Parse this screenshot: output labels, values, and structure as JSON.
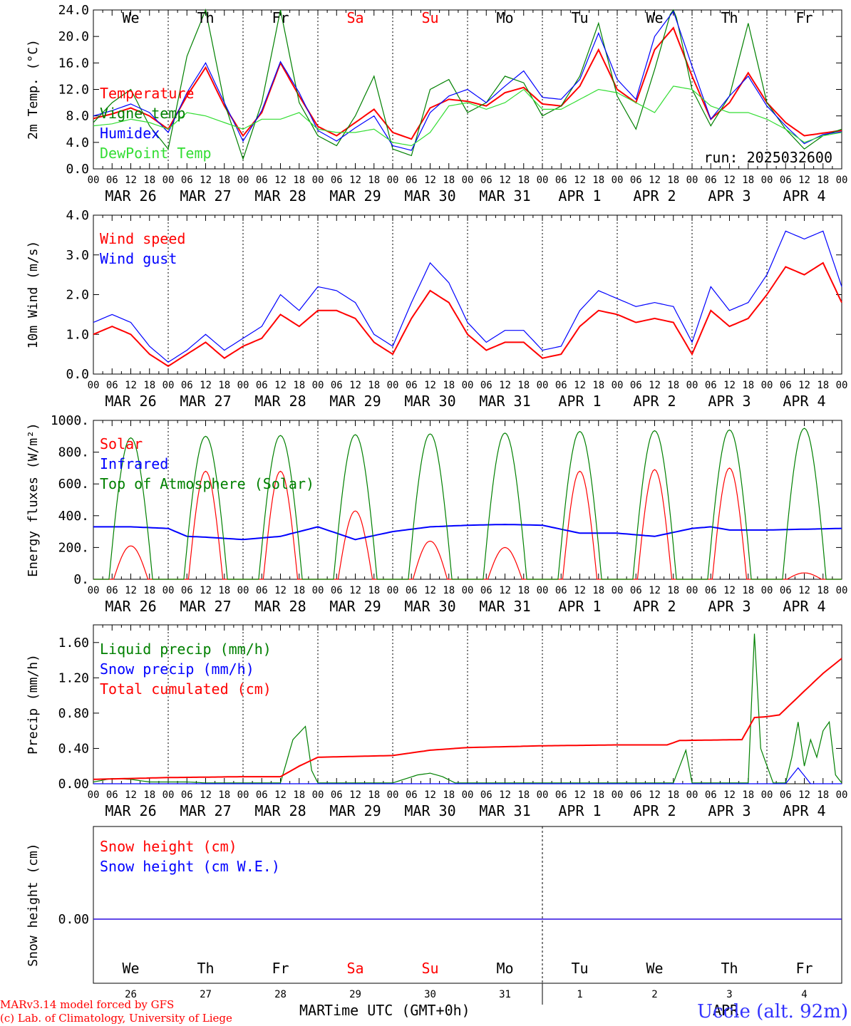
{
  "footer": {
    "model_line": "MARv3.14 model forced by GFS",
    "credit_line": "(c) Lab. of Climatology, University of Liege",
    "xlabel": "Time UTC (GMT+0h)",
    "month_left": "MAR",
    "month_right": "APR",
    "station": "Uccle (alt. 92m)"
  },
  "run_label": "run: 2025032600",
  "hour_ticks": [
    "00",
    "06",
    "12",
    "18"
  ],
  "day_letters": [
    "We",
    "Th",
    "Fr",
    "Sa",
    "Su",
    "Mo",
    "Tu",
    "We",
    "Th",
    "Fr"
  ],
  "weekend_days": [
    3,
    4
  ],
  "date_labels": [
    "MAR 26",
    "MAR 27",
    "MAR 28",
    "MAR 29",
    "MAR 30",
    "MAR 31",
    "APR  1",
    "APR  2",
    "APR  3",
    "APR  4"
  ],
  "day_numbers": [
    "26",
    "27",
    "28",
    "29",
    "30",
    "31",
    "1",
    "2",
    "3",
    "4"
  ],
  "colors": {
    "red": "#ff0000",
    "blue": "#0000ff",
    "green": "#008000",
    "light_green": "#33dd33",
    "frame": "#000000",
    "station": "#3333ff"
  },
  "chart_data": [
    {
      "type": "line",
      "ylabel": "2m Temp. (°C)",
      "ylim": [
        0,
        24
      ],
      "yticks": [
        "0.0",
        "4.0",
        "8.0",
        "12.0",
        "16.0",
        "20.0",
        "24.0"
      ],
      "x_unit": "hours since MAR 26 00 UTC",
      "series": [
        {
          "name": "Temperature",
          "color": "#ff0000",
          "x": [
            0,
            6,
            12,
            18,
            24,
            30,
            36,
            42,
            48,
            54,
            60,
            66,
            72,
            78,
            84,
            90,
            96,
            102,
            108,
            114,
            120,
            126,
            132,
            138,
            144,
            150,
            156,
            162,
            168,
            174,
            180,
            186,
            192,
            198,
            204,
            210,
            216,
            222,
            228,
            234,
            240
          ],
          "y": [
            7.6,
            8.3,
            9.2,
            8.0,
            6.0,
            11.0,
            15.3,
            9.5,
            5.0,
            8.5,
            16.0,
            11.0,
            6.4,
            5.0,
            7.0,
            9.0,
            5.5,
            4.5,
            9.2,
            10.5,
            10.2,
            9.5,
            11.5,
            12.3,
            9.8,
            9.5,
            12.5,
            18.0,
            12.0,
            10.0,
            18.0,
            21.3,
            14.0,
            7.5,
            10.0,
            14.5,
            10.0,
            7.0,
            5.0,
            5.4,
            5.8
          ]
        },
        {
          "name": "Vigne temp",
          "color": "#008000",
          "x": [
            0,
            6,
            12,
            18,
            24,
            30,
            36,
            42,
            48,
            54,
            60,
            66,
            72,
            78,
            84,
            90,
            96,
            102,
            108,
            114,
            120,
            126,
            132,
            138,
            144,
            150,
            156,
            162,
            168,
            174,
            180,
            186,
            192,
            198,
            204,
            210,
            216,
            222,
            228,
            234,
            240
          ],
          "y": [
            7.0,
            10.0,
            12.0,
            6.5,
            3.0,
            17.0,
            24.0,
            10.0,
            1.5,
            10.0,
            24.0,
            10.0,
            5.0,
            3.5,
            8.0,
            14.0,
            3.0,
            2.0,
            12.0,
            13.5,
            8.5,
            10.0,
            14.0,
            13.0,
            8.0,
            9.5,
            14.0,
            22.0,
            11.0,
            6.0,
            15.0,
            25.0,
            12.0,
            6.5,
            11.0,
            22.0,
            10.0,
            6.0,
            3.0,
            5.0,
            6.0
          ]
        },
        {
          "name": "Humidex",
          "color": "#0000ff",
          "x": [
            0,
            6,
            12,
            18,
            24,
            30,
            36,
            42,
            48,
            54,
            60,
            66,
            72,
            78,
            84,
            90,
            96,
            102,
            108,
            114,
            120,
            126,
            132,
            138,
            144,
            150,
            156,
            162,
            168,
            174,
            180,
            186,
            192,
            198,
            204,
            210,
            216,
            222,
            228,
            234,
            240
          ],
          "y": [
            8.0,
            8.8,
            9.8,
            8.5,
            5.5,
            11.5,
            16.0,
            10.0,
            4.2,
            8.8,
            16.2,
            11.5,
            5.8,
            4.2,
            6.2,
            8.0,
            3.5,
            2.8,
            8.5,
            11.0,
            12.0,
            10.0,
            12.5,
            14.8,
            10.8,
            10.5,
            13.5,
            20.5,
            13.5,
            10.5,
            20.0,
            23.8,
            15.5,
            7.5,
            11.0,
            14.0,
            9.5,
            6.5,
            3.8,
            5.2,
            5.6
          ]
        },
        {
          "name": "DewPoint Temp",
          "color": "#33dd33",
          "x": [
            0,
            6,
            12,
            18,
            24,
            30,
            36,
            42,
            48,
            54,
            60,
            66,
            72,
            78,
            84,
            90,
            96,
            102,
            108,
            114,
            120,
            126,
            132,
            138,
            144,
            150,
            156,
            162,
            168,
            174,
            180,
            186,
            192,
            198,
            204,
            210,
            216,
            222,
            228,
            234,
            240
          ],
          "y": [
            6.5,
            6.8,
            7.5,
            7.0,
            6.0,
            8.5,
            8.0,
            7.0,
            6.0,
            7.5,
            7.5,
            8.5,
            6.0,
            5.5,
            5.5,
            6.0,
            4.0,
            3.5,
            5.5,
            9.5,
            10.0,
            9.0,
            10.0,
            12.0,
            9.0,
            9.0,
            10.5,
            12.0,
            11.5,
            10.0,
            8.5,
            12.5,
            12.0,
            9.5,
            8.5,
            8.5,
            7.5,
            6.0,
            4.0,
            5.0,
            5.5
          ]
        }
      ]
    },
    {
      "type": "line",
      "ylabel": "10m Wind (m/s)",
      "ylim": [
        0,
        4
      ],
      "yticks": [
        "0.0",
        "1.0",
        "2.0",
        "3.0",
        "4.0"
      ],
      "x_unit": "hours since MAR 26 00 UTC",
      "series": [
        {
          "name": "Wind speed",
          "color": "#ff0000",
          "x": [
            0,
            6,
            12,
            18,
            24,
            30,
            36,
            42,
            48,
            54,
            60,
            66,
            72,
            78,
            84,
            90,
            96,
            102,
            108,
            114,
            120,
            126,
            132,
            138,
            144,
            150,
            156,
            162,
            168,
            174,
            180,
            186,
            192,
            198,
            204,
            210,
            216,
            222,
            228,
            234,
            240
          ],
          "y": [
            1.0,
            1.2,
            1.0,
            0.5,
            0.2,
            0.5,
            0.8,
            0.4,
            0.7,
            0.9,
            1.5,
            1.2,
            1.6,
            1.6,
            1.4,
            0.8,
            0.5,
            1.4,
            2.1,
            1.8,
            1.0,
            0.6,
            0.8,
            0.8,
            0.4,
            0.5,
            1.2,
            1.6,
            1.5,
            1.3,
            1.4,
            1.3,
            0.5,
            1.6,
            1.2,
            1.4,
            2.0,
            2.7,
            2.5,
            2.8,
            1.8
          ]
        },
        {
          "name": "Wind gust",
          "color": "#0000ff",
          "x": [
            0,
            6,
            12,
            18,
            24,
            30,
            36,
            42,
            48,
            54,
            60,
            66,
            72,
            78,
            84,
            90,
            96,
            102,
            108,
            114,
            120,
            126,
            132,
            138,
            144,
            150,
            156,
            162,
            168,
            174,
            180,
            186,
            192,
            198,
            204,
            210,
            216,
            222,
            228,
            234,
            240
          ],
          "y": [
            1.3,
            1.5,
            1.3,
            0.7,
            0.3,
            0.6,
            1.0,
            0.6,
            0.9,
            1.2,
            2.0,
            1.6,
            2.2,
            2.1,
            1.8,
            1.0,
            0.7,
            1.8,
            2.8,
            2.3,
            1.3,
            0.8,
            1.1,
            1.1,
            0.6,
            0.7,
            1.6,
            2.1,
            1.9,
            1.7,
            1.8,
            1.7,
            0.8,
            2.2,
            1.6,
            1.8,
            2.5,
            3.6,
            3.4,
            3.6,
            2.2
          ]
        }
      ]
    },
    {
      "type": "line",
      "ylabel": "Energy fluxes (W/m²)",
      "ylim": [
        0,
        1000
      ],
      "yticks": [
        "0.",
        "200.",
        "400.",
        "600.",
        "800.",
        "1000."
      ],
      "x_unit": "hours since MAR 26 00 UTC",
      "series": [
        {
          "name": "Solar",
          "color": "#ff0000",
          "peaks": [
            210,
            680,
            680,
            430,
            240,
            200,
            680,
            690,
            700,
            40
          ]
        },
        {
          "name": "Infrared",
          "color": "#0000ff",
          "x": [
            0,
            12,
            24,
            30,
            36,
            48,
            60,
            72,
            84,
            96,
            108,
            120,
            132,
            144,
            156,
            168,
            180,
            192,
            198,
            204,
            216,
            228,
            240
          ],
          "y": [
            330,
            330,
            320,
            270,
            265,
            250,
            270,
            330,
            250,
            300,
            330,
            340,
            345,
            340,
            290,
            290,
            270,
            320,
            330,
            310,
            310,
            315,
            320
          ]
        },
        {
          "name": "Top of Atmosphere (Solar)",
          "color": "#008000",
          "peaks": [
            890,
            900,
            905,
            910,
            915,
            920,
            930,
            935,
            940,
            950
          ]
        }
      ]
    },
    {
      "type": "line",
      "ylabel": "Precip (mm/h)",
      "ylim": [
        0,
        1.8
      ],
      "yticks": [
        "0.00",
        "0.40",
        "0.80",
        "1.20",
        "1.60"
      ],
      "x_unit": "hours since MAR 26 00 UTC",
      "series": [
        {
          "name": "Liquid precip (mm/h)",
          "color": "#008000",
          "x": [
            0,
            6,
            12,
            18,
            24,
            30,
            36,
            42,
            48,
            60,
            64,
            68,
            70,
            72,
            76,
            84,
            96,
            104,
            108,
            112,
            116,
            120,
            132,
            144,
            168,
            186,
            190,
            192,
            200,
            210,
            212,
            214,
            218,
            222,
            224,
            226,
            228,
            230,
            232,
            234,
            236,
            238,
            240
          ],
          "y": [
            0.02,
            0.06,
            0.05,
            0.02,
            0.02,
            0.02,
            0.01,
            0.01,
            0.01,
            0.01,
            0.5,
            0.65,
            0.15,
            0.01,
            0.01,
            0.01,
            0.01,
            0.1,
            0.12,
            0.08,
            0.01,
            0.01,
            0.01,
            0.01,
            0.01,
            0.01,
            0.38,
            0.01,
            0.01,
            0.01,
            1.7,
            0.4,
            0.01,
            0.01,
            0.3,
            0.7,
            0.2,
            0.5,
            0.3,
            0.6,
            0.7,
            0.1,
            0.01
          ]
        },
        {
          "name": "Snow precip (mm/h)",
          "color": "#0000ff",
          "x": [
            0,
            222,
            226,
            230,
            240
          ],
          "y": [
            0,
            0,
            0.18,
            0,
            0
          ]
        },
        {
          "name": "Total cumulated (cm)",
          "color": "#ff0000",
          "x": [
            0,
            24,
            48,
            60,
            66,
            72,
            84,
            96,
            108,
            120,
            144,
            168,
            184,
            188,
            208,
            212,
            216,
            220,
            228,
            234,
            240
          ],
          "y": [
            0.05,
            0.07,
            0.08,
            0.08,
            0.2,
            0.3,
            0.31,
            0.32,
            0.38,
            0.41,
            0.43,
            0.44,
            0.44,
            0.49,
            0.5,
            0.75,
            0.76,
            0.78,
            1.05,
            1.25,
            1.42
          ]
        }
      ]
    },
    {
      "type": "line",
      "ylabel": "Snow height (cm)",
      "yticks": [
        "0.00"
      ],
      "x_unit": "hours since MAR 26 00 UTC",
      "series": [
        {
          "name": "Snow height (cm)",
          "color": "#ff0000",
          "x": [
            0,
            240
          ],
          "y": [
            0,
            0
          ]
        },
        {
          "name": "Snow height (cm W.E.)",
          "color": "#0000ff",
          "x": [
            0,
            240
          ],
          "y": [
            0,
            0
          ]
        }
      ]
    }
  ]
}
